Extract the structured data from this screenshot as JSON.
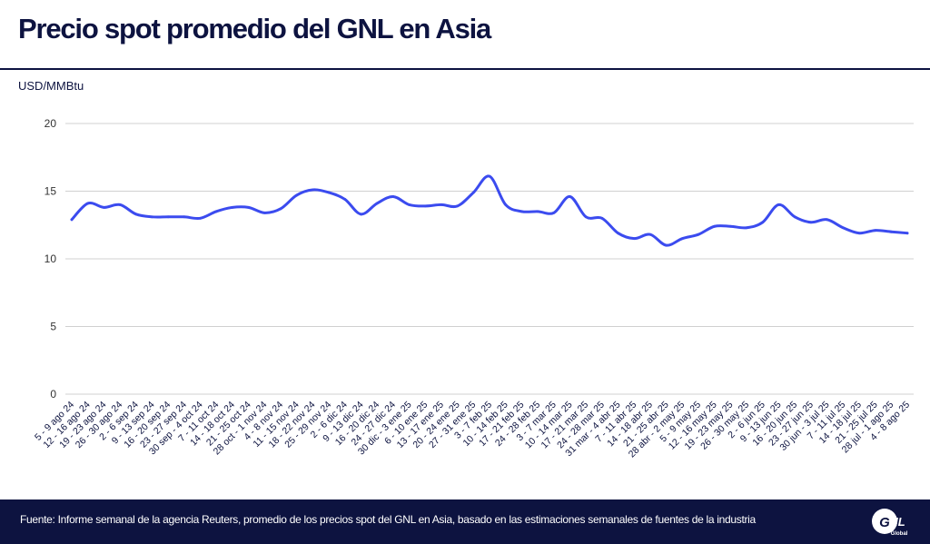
{
  "header": {
    "title": "Precio spot promedio del GNL en Asia",
    "unit_label": "USD/MMBtu"
  },
  "footer": {
    "source": "Fuente: Informe semanal de la agencia Reuters, promedio de los precios spot del GNL en Asia, basado en las estimaciones semanales de fuentes de la industria",
    "logo_text": "GNL",
    "logo_sub": "Global"
  },
  "colors": {
    "navy": "#0d1340",
    "line": "#3b4bef",
    "grid": "#d0d0d0"
  },
  "chart_data": {
    "type": "line",
    "title": "Precio spot promedio del GNL en Asia",
    "xlabel": "",
    "ylabel": "USD/MMBtu",
    "ylim": [
      0,
      20
    ],
    "yticks": [
      0,
      5,
      10,
      15,
      20
    ],
    "grid": true,
    "categories": [
      "5 - 9 ago 24",
      "12 - 16 ago 24",
      "19 - 23 ago 24",
      "26 - 30 ago 24",
      "2 - 6 sep 24",
      "9 - 13 sep 24",
      "16 - 20 sep 24",
      "23 - 27 sep 24",
      "30 sep - 4 oct 24",
      "7 - 11 oct 24",
      "14 - 18 oct 24",
      "21 - 25 oct 24",
      "28 oct - 1 nov 24",
      "4 - 8 nov 24",
      "11 - 15 nov 24",
      "18 - 22 nov 24",
      "25 - 29 nov 24",
      "2 - 6 dic 24",
      "9 - 13 dic 24",
      "16 - 20 dic 24",
      "24 - 27 dic 24",
      "30 dic - 3 ene 25",
      "6 - 10 ene 25",
      "13 - 17 ene 25",
      "20 - 24 ene 25",
      "27 - 31 ene 25",
      "3 - 7 feb 25",
      "10 - 14 feb 25",
      "17 - 21 feb 25",
      "24 - 28 feb 25",
      "3 - 7 mar 25",
      "10 - 14 mar 25",
      "17 - 21 mar 25",
      "24 - 28 mar 25",
      "31 mar - 4 abr 25",
      "7 - 11 abr 25",
      "14 - 18 abr 25",
      "21 - 25 abr 25",
      "28 abr - 2 may 25",
      "5 - 9 may 25",
      "12 - 16 may 25",
      "19 - 23 may 25",
      "26 - 30 may 25",
      "2 - 6 jun 25",
      "9 - 13 jun 25",
      "16 - 20 jun 25",
      "23 - 27 jun 25",
      "30 jun - 3 jul 25",
      "7 - 11 jul 25",
      "14 - 18 jul 25",
      "21 - 25 jul 25",
      "28 jul - 1 ago 25",
      "4 - 8 ago 25"
    ],
    "values": [
      12.9,
      14.1,
      13.8,
      14.0,
      13.3,
      13.1,
      13.1,
      13.1,
      13.0,
      13.5,
      13.8,
      13.8,
      13.4,
      13.7,
      14.7,
      15.1,
      14.9,
      14.4,
      13.3,
      14.1,
      14.6,
      14.0,
      13.9,
      14.0,
      13.9,
      14.9,
      16.1,
      14.0,
      13.5,
      13.5,
      13.4,
      14.6,
      13.1,
      13.0,
      11.9,
      11.5,
      11.8,
      11.0,
      11.5,
      11.8,
      12.4,
      12.4,
      12.3,
      12.7,
      14.0,
      13.1,
      12.7,
      12.9,
      12.3,
      11.9,
      12.1,
      12.0,
      11.9
    ]
  }
}
